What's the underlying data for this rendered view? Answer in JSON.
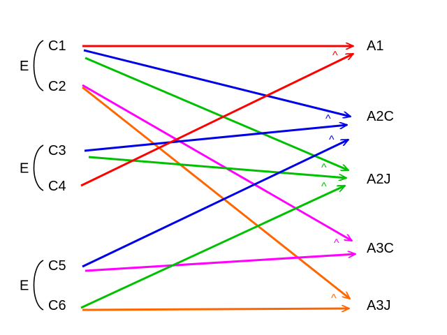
{
  "left_nodes": [
    {
      "id": "C1",
      "label": "C1"
    },
    {
      "id": "C2",
      "label": "C2"
    },
    {
      "id": "C3",
      "label": "C3"
    },
    {
      "id": "C4",
      "label": "C4"
    },
    {
      "id": "C5",
      "label": "C5"
    },
    {
      "id": "C6",
      "label": "C6"
    }
  ],
  "right_nodes": [
    {
      "id": "A1",
      "label": "A1"
    },
    {
      "id": "A2C",
      "label": "A2C"
    },
    {
      "id": "A2J",
      "label": "A2J"
    },
    {
      "id": "A3C",
      "label": "A3C"
    },
    {
      "id": "A3J",
      "label": "A3J"
    }
  ],
  "groups": [
    {
      "label": "E",
      "members": [
        "C1",
        "C2"
      ]
    },
    {
      "label": "E",
      "members": [
        "C3",
        "C4"
      ]
    },
    {
      "label": "E",
      "members": [
        "C5",
        "C6"
      ]
    }
  ],
  "edges": [
    {
      "from": "C1",
      "to": "A1",
      "color": "#ff0000"
    },
    {
      "from": "C1",
      "to": "A2C",
      "color": "#0000e6"
    },
    {
      "from": "C1",
      "to": "A2J",
      "color": "#00c000"
    },
    {
      "from": "C2",
      "to": "A3C",
      "color": "#ff00ff"
    },
    {
      "from": "C2",
      "to": "A3J",
      "color": "#ff6600"
    },
    {
      "from": "C3",
      "to": "A2C",
      "color": "#0000e6"
    },
    {
      "from": "C3",
      "to": "A2J",
      "color": "#00c000"
    },
    {
      "from": "C4",
      "to": "A1",
      "color": "#ff0000"
    },
    {
      "from": "C5",
      "to": "A2C",
      "color": "#0000e6"
    },
    {
      "from": "C5",
      "to": "A3C",
      "color": "#ff00ff"
    },
    {
      "from": "C6",
      "to": "A2J",
      "color": "#00c000"
    },
    {
      "from": "C6",
      "to": "A3J",
      "color": "#ff6600"
    }
  ],
  "carets": [
    {
      "text": "^",
      "color": "#ff0000"
    },
    {
      "text": "^",
      "color": "#0000e6"
    },
    {
      "text": "^",
      "color": "#0000e6"
    },
    {
      "text": "^",
      "color": "#00c000"
    },
    {
      "text": "^",
      "color": "#00c000"
    },
    {
      "text": "^",
      "color": "#ff00ff"
    },
    {
      "text": "^",
      "color": "#ff6600"
    }
  ]
}
